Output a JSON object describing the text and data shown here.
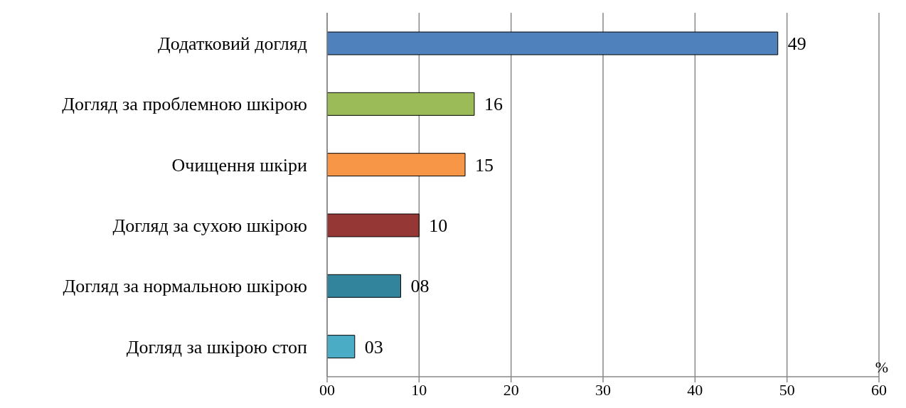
{
  "chart_data": {
    "type": "bar",
    "orientation": "horizontal",
    "xlabel": "%",
    "categories": [
      "Додатковий догляд",
      "Догляд за проблемною шкірою",
      "Очищення шкіри",
      "Догляд за сухою шкірою",
      "Догляд за нормальною шкірою",
      "Догляд за шкірою стоп"
    ],
    "values": [
      49,
      16,
      15,
      10,
      8,
      3
    ],
    "value_labels": [
      "49",
      "16",
      "15",
      "10",
      "08",
      "03"
    ],
    "colors": [
      "#4f81bd",
      "#9bbb59",
      "#f79646",
      "#953735",
      "#31849b",
      "#4bacc6"
    ],
    "xlim": [
      0,
      60
    ],
    "xticks": [
      {
        "value": 0,
        "label": "00"
      },
      10,
      20,
      30,
      40,
      50,
      60
    ],
    "grid": "x",
    "legend": false
  }
}
